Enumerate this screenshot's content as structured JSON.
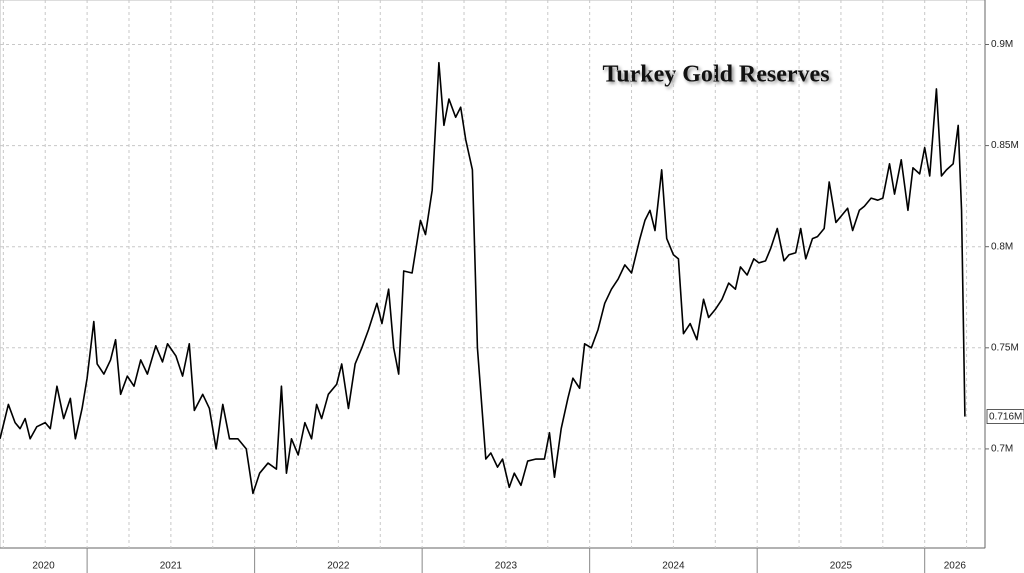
{
  "chart_data": {
    "type": "line",
    "title": "Turkey Gold Reserves",
    "color": "#000000",
    "x": [
      2020.48,
      2020.53,
      2020.57,
      2020.6,
      2020.63,
      2020.66,
      2020.7,
      2020.75,
      2020.78,
      2020.82,
      2020.86,
      2020.9,
      2020.93,
      2020.97,
      2021.0,
      2021.04,
      2021.06,
      2021.1,
      2021.14,
      2021.17,
      2021.2,
      2021.24,
      2021.28,
      2021.32,
      2021.36,
      2021.41,
      2021.45,
      2021.48,
      2021.53,
      2021.57,
      2021.61,
      2021.64,
      2021.69,
      2021.73,
      2021.77,
      2021.81,
      2021.85,
      2021.9,
      2021.95,
      2021.99,
      2022.03,
      2022.08,
      2022.13,
      2022.16,
      2022.19,
      2022.22,
      2022.26,
      2022.3,
      2022.34,
      2022.37,
      2022.4,
      2022.44,
      2022.49,
      2022.52,
      2022.56,
      2022.6,
      2022.64,
      2022.68,
      2022.73,
      2022.76,
      2022.8,
      2022.83,
      2022.86,
      2022.89,
      2022.94,
      2022.99,
      2023.02,
      2023.06,
      2023.1,
      2023.13,
      2023.16,
      2023.2,
      2023.23,
      2023.26,
      2023.3,
      2023.33,
      2023.38,
      2023.41,
      2023.45,
      2023.48,
      2023.52,
      2023.55,
      2023.59,
      2023.63,
      2023.68,
      2023.73,
      2023.76,
      2023.79,
      2023.83,
      2023.87,
      2023.9,
      2023.94,
      2023.97,
      2024.01,
      2024.05,
      2024.09,
      2024.13,
      2024.17,
      2024.21,
      2024.25,
      2024.3,
      2024.33,
      2024.36,
      2024.39,
      2024.43,
      2024.46,
      2024.5,
      2024.53,
      2024.56,
      2024.6,
      2024.64,
      2024.68,
      2024.71,
      2024.75,
      2024.79,
      2024.83,
      2024.87,
      2024.9,
      2024.94,
      2024.98,
      2025.01,
      2025.05,
      2025.08,
      2025.12,
      2025.16,
      2025.19,
      2025.23,
      2025.26,
      2025.29,
      2025.33,
      2025.36,
      2025.4,
      2025.43,
      2025.47,
      2025.5,
      2025.54,
      2025.57,
      2025.61,
      2025.64,
      2025.68,
      2025.72,
      2025.75,
      2025.79,
      2025.82,
      2025.86,
      2025.9,
      2025.93,
      2025.97,
      2026.0,
      2026.03,
      2026.07,
      2026.1,
      2026.13,
      2026.17,
      2026.2,
      2026.22,
      2026.24
    ],
    "values": [
      0.705,
      0.722,
      0.713,
      0.71,
      0.715,
      0.705,
      0.711,
      0.713,
      0.71,
      0.731,
      0.715,
      0.725,
      0.705,
      0.72,
      0.735,
      0.763,
      0.742,
      0.737,
      0.744,
      0.754,
      0.727,
      0.736,
      0.731,
      0.744,
      0.737,
      0.751,
      0.743,
      0.752,
      0.746,
      0.736,
      0.752,
      0.719,
      0.727,
      0.72,
      0.7,
      0.722,
      0.705,
      0.705,
      0.7,
      0.678,
      0.688,
      0.693,
      0.69,
      0.731,
      0.688,
      0.705,
      0.697,
      0.713,
      0.705,
      0.722,
      0.715,
      0.727,
      0.732,
      0.742,
      0.72,
      0.742,
      0.75,
      0.759,
      0.772,
      0.762,
      0.779,
      0.75,
      0.737,
      0.788,
      0.787,
      0.813,
      0.806,
      0.828,
      0.891,
      0.86,
      0.873,
      0.864,
      0.869,
      0.853,
      0.838,
      0.75,
      0.695,
      0.698,
      0.691,
      0.695,
      0.681,
      0.688,
      0.682,
      0.694,
      0.695,
      0.695,
      0.708,
      0.686,
      0.71,
      0.725,
      0.735,
      0.73,
      0.752,
      0.75,
      0.759,
      0.772,
      0.779,
      0.784,
      0.791,
      0.787,
      0.804,
      0.813,
      0.818,
      0.808,
      0.838,
      0.804,
      0.796,
      0.794,
      0.757,
      0.762,
      0.754,
      0.774,
      0.765,
      0.769,
      0.774,
      0.782,
      0.779,
      0.79,
      0.786,
      0.794,
      0.792,
      0.793,
      0.799,
      0.809,
      0.793,
      0.796,
      0.797,
      0.809,
      0.794,
      0.804,
      0.805,
      0.809,
      0.832,
      0.812,
      0.815,
      0.819,
      0.808,
      0.818,
      0.82,
      0.824,
      0.823,
      0.824,
      0.841,
      0.826,
      0.843,
      0.818,
      0.839,
      0.836,
      0.849,
      0.835,
      0.878,
      0.835,
      0.838,
      0.841,
      0.86,
      0.818,
      0.716
    ],
    "xlim": [
      2020.48,
      2026.36
    ],
    "xticks": [
      2021,
      2022,
      2023,
      2024,
      2025,
      2026
    ],
    "year_labels": [
      "2020",
      "2021",
      "2022",
      "2023",
      "2024",
      "2025",
      "2026"
    ],
    "ylim": [
      0.651,
      0.922
    ],
    "yticks": [
      {
        "value": 0.7,
        "label": "0.7M"
      },
      {
        "value": 0.75,
        "label": "0.75M"
      },
      {
        "value": 0.8,
        "label": "0.8M"
      },
      {
        "value": 0.85,
        "label": "0.85M"
      },
      {
        "value": 0.9,
        "label": "0.9M"
      }
    ],
    "last_value": {
      "value": 0.716,
      "label": "0.716M"
    },
    "grid": true
  }
}
